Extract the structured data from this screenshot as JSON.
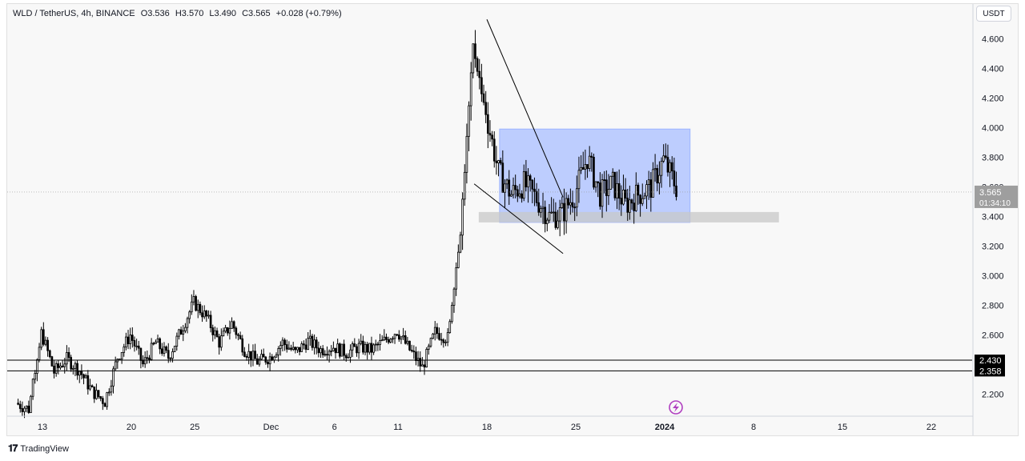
{
  "legend": {
    "symbol": "WLD / TetherUS, 4h, BINANCE",
    "open": "O3.536",
    "high": "H3.570",
    "low": "L3.490",
    "close": "C3.565",
    "change": "+0.028 (+0.79%)"
  },
  "unit_button": "USDT",
  "brand": {
    "icon": "tv-logo-icon",
    "name": "TradingView"
  },
  "chart_data": {
    "type": "candlestick",
    "symbol": "WLD / TetherUS",
    "interval": "4h",
    "exchange": "BINANCE",
    "ylim": [
      2.09,
      4.78
    ],
    "x_ticks": [
      "13",
      "20",
      "25",
      "Dec",
      "6",
      "11",
      "18",
      "25",
      "2024",
      "8",
      "15",
      "22"
    ],
    "y_ticks": [
      "4.600",
      "4.400",
      "4.200",
      "4.000",
      "3.800",
      "3.600",
      "3.400",
      "3.200",
      "3.000",
      "2.800",
      "2.600",
      "2.200"
    ],
    "last_price": "3.565",
    "countdown": "01:34:10",
    "horizontal_levels": [
      {
        "value": 2.43,
        "label": "2.430"
      },
      {
        "value": 2.358,
        "label": "2.358"
      }
    ],
    "range_box": {
      "from": "Dec 19",
      "to": "Jan 3",
      "low": 3.36,
      "high": 3.99
    },
    "support_zone": {
      "from": "Dec 19",
      "to": "Jan 10",
      "low": 3.36,
      "high": 3.43
    },
    "falling_wedge": [
      {
        "from": [
          "Dec 18",
          4.73
        ],
        "to": [
          "Dec 24",
          3.53
        ]
      },
      {
        "from": [
          "Dec 17",
          3.62
        ],
        "to": [
          "Dec 24",
          3.15
        ]
      }
    ],
    "price_path": [
      [
        "Nov 11",
        2.14
      ],
      [
        "Nov 12",
        2.1
      ],
      [
        "Nov 13",
        2.62
      ],
      [
        "Nov 14",
        2.35
      ],
      [
        "Nov 15",
        2.44
      ],
      [
        "Nov 16",
        2.36
      ],
      [
        "Nov 17",
        2.22
      ],
      [
        "Nov 18",
        2.15
      ],
      [
        "Nov 19",
        2.45
      ],
      [
        "Nov 20",
        2.6
      ],
      [
        "Nov 21",
        2.4
      ],
      [
        "Nov 22",
        2.55
      ],
      [
        "Nov 23",
        2.45
      ],
      [
        "Nov 24",
        2.63
      ],
      [
        "Nov 25",
        2.82
      ],
      [
        "Nov 26",
        2.72
      ],
      [
        "Nov 27",
        2.55
      ],
      [
        "Nov 28",
        2.68
      ],
      [
        "Nov 29",
        2.5
      ],
      [
        "Nov 30",
        2.42
      ],
      [
        "Dec 1",
        2.45
      ],
      [
        "Dec 2",
        2.55
      ],
      [
        "Dec 3",
        2.48
      ],
      [
        "Dec 4",
        2.56
      ],
      [
        "Dec 5",
        2.5
      ],
      [
        "Dec 6",
        2.52
      ],
      [
        "Dec 7",
        2.48
      ],
      [
        "Dec 8",
        2.52
      ],
      [
        "Dec 9",
        2.5
      ],
      [
        "Dec 10",
        2.56
      ],
      [
        "Dec 11",
        2.63
      ],
      [
        "Dec 12",
        2.5
      ],
      [
        "Dec 13",
        2.38
      ],
      [
        "Dec 14",
        2.62
      ],
      [
        "Dec 15",
        2.58
      ],
      [
        "Dec 16",
        3.3
      ],
      [
        "Dec 17",
        4.55
      ],
      [
        "Dec 18",
        4.1
      ],
      [
        "Dec 19",
        3.7
      ],
      [
        "Dec 20",
        3.55
      ],
      [
        "Dec 21",
        3.62
      ],
      [
        "Dec 22",
        3.52
      ],
      [
        "Dec 23",
        3.4
      ],
      [
        "Dec 24",
        3.42
      ],
      [
        "Dec 25",
        3.55
      ],
      [
        "Dec 26",
        3.8
      ],
      [
        "Dec 27",
        3.55
      ],
      [
        "Dec 28",
        3.62
      ],
      [
        "Dec 29",
        3.48
      ],
      [
        "Dec 30",
        3.55
      ],
      [
        "Dec 31",
        3.6
      ],
      [
        "Jan 1",
        3.78
      ],
      [
        "Jan 2",
        3.6
      ]
    ]
  }
}
